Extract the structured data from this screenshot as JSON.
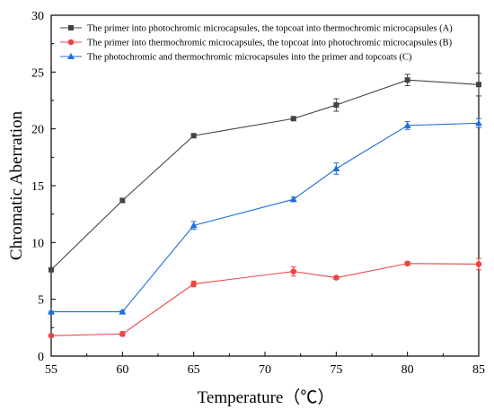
{
  "chart_data": {
    "type": "line",
    "xlabel": "Temperature（℃）",
    "ylabel": "Chromatic Aberration",
    "xlim": [
      55,
      85
    ],
    "ylim": [
      0,
      30
    ],
    "x_ticks": [
      55,
      60,
      65,
      70,
      75,
      80,
      85
    ],
    "y_ticks": [
      0,
      5,
      10,
      15,
      20,
      25,
      30
    ],
    "grid": false,
    "legend_position": "top-left",
    "series": [
      {
        "name": "The primer into photochromic microcapsules, the topcoat into thermochromic microcapsules (A)",
        "color": "#444444",
        "marker": "square",
        "x": [
          55,
          60,
          65,
          72,
          75,
          80,
          85
        ],
        "y": [
          7.6,
          13.7,
          19.4,
          20.9,
          22.1,
          24.3,
          23.9
        ],
        "err": [
          0.1,
          0.2,
          0.15,
          0.1,
          0.55,
          0.5,
          1.0
        ]
      },
      {
        "name": "The primer into thermochromic microcapsules, the topcoat into photochromic microcapsules (B)",
        "color": "#ee4444",
        "marker": "circle",
        "x": [
          55,
          60,
          65,
          72,
          75,
          80,
          85
        ],
        "y": [
          1.8,
          1.95,
          6.35,
          7.45,
          6.9,
          8.15,
          8.1
        ],
        "err": [
          0.05,
          0.2,
          0.25,
          0.4,
          0.15,
          0.15,
          0.5
        ]
      },
      {
        "name": "The photochromic and thermochromic microcapsules into the primer and topcoats (C)",
        "color": "#1f6fd8",
        "marker": "triangle",
        "x": [
          55,
          60,
          65,
          72,
          75,
          80,
          85
        ],
        "y": [
          3.9,
          3.9,
          11.5,
          13.8,
          16.5,
          20.3,
          20.5
        ],
        "err": [
          0.05,
          0.1,
          0.35,
          0.2,
          0.5,
          0.35,
          0.4
        ]
      }
    ]
  }
}
